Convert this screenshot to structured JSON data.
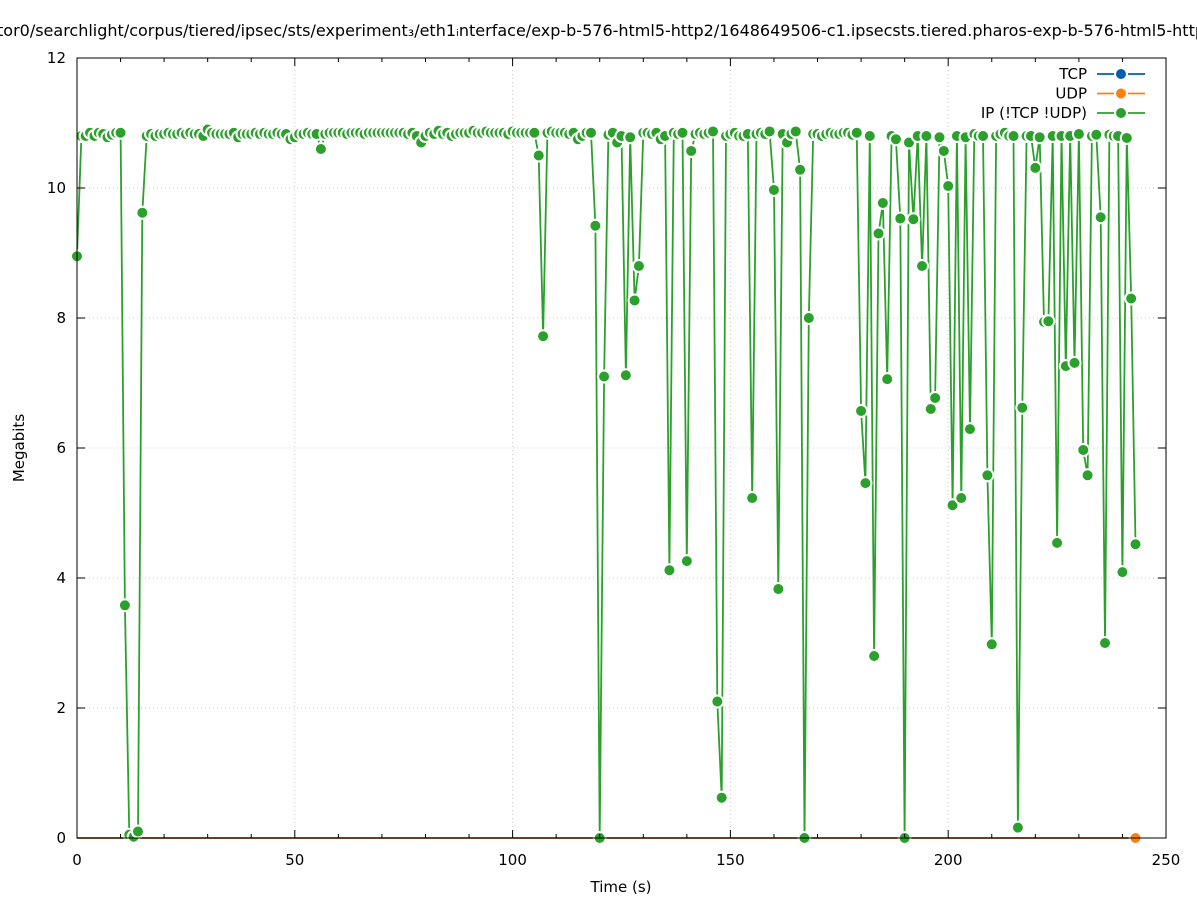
{
  "chart_data": {
    "type": "line",
    "title": "tor0/searchlight/corpus/tiered/ipsec/sts/experiment₃/eth1ᵢnterface/exp-b-576-html5-http2/1648649506-c1.ipsecsts.tiered.pharos-exp-b-576-html5-http",
    "xlabel": "Time (s)",
    "ylabel": "Megabits",
    "xlim": [
      0,
      250
    ],
    "ylim": [
      0,
      12
    ],
    "xticks": [
      "0",
      "50",
      "100",
      "150",
      "200",
      "250"
    ],
    "yticks": [
      "0",
      "2",
      "4",
      "6",
      "8",
      "10",
      "12"
    ],
    "grid": true,
    "legend_position": "top-right",
    "series": [
      {
        "name": "TCP",
        "color": "#0060ad",
        "x": [
          0,
          243
        ],
        "values": [
          0,
          0
        ],
        "markers": "none"
      },
      {
        "name": "UDP",
        "color": "#ff7f0e",
        "x": [
          0,
          243
        ],
        "values": [
          0,
          0
        ],
        "markers": "last"
      },
      {
        "name": "IP (!TCP  !UDP)",
        "color": "#2ca02c",
        "x_start": 0,
        "x_step": 1,
        "markers": "all",
        "values": [
          8.95,
          10.8,
          10.8,
          10.85,
          10.8,
          10.85,
          10.83,
          10.78,
          10.82,
          10.85,
          10.85,
          3.58,
          0.05,
          0.02,
          0.1,
          9.62,
          10.8,
          10.83,
          10.8,
          10.83,
          10.83,
          10.85,
          10.83,
          10.83,
          10.85,
          10.83,
          10.85,
          10.83,
          10.83,
          10.8,
          10.9,
          10.85,
          10.83,
          10.83,
          10.83,
          10.83,
          10.85,
          10.78,
          10.83,
          10.83,
          10.83,
          10.85,
          10.83,
          10.85,
          10.83,
          10.83,
          10.85,
          10.83,
          10.83,
          10.75,
          10.78,
          10.83,
          10.83,
          10.85,
          10.83,
          10.83,
          10.6,
          10.83,
          10.85,
          10.85,
          10.85,
          10.85,
          10.83,
          10.85,
          10.85,
          10.85,
          10.83,
          10.85,
          10.85,
          10.85,
          10.85,
          10.85,
          10.85,
          10.85,
          10.85,
          10.85,
          10.83,
          10.85,
          10.8,
          10.7,
          10.8,
          10.85,
          10.83,
          10.88,
          10.83,
          10.85,
          10.8,
          10.83,
          10.85,
          10.85,
          10.85,
          10.88,
          10.85,
          10.85,
          10.87,
          10.85,
          10.85,
          10.85,
          10.85,
          10.83,
          10.87,
          10.85,
          10.85,
          10.85,
          10.85,
          10.85,
          10.5,
          7.72,
          10.85,
          10.87,
          10.85,
          10.85,
          10.85,
          10.83,
          10.85,
          10.75,
          10.8,
          10.85,
          10.85,
          9.42,
          0,
          7.1,
          10.82,
          10.85,
          10.7,
          10.8,
          7.12,
          10.78,
          8.27,
          8.8,
          10.85,
          10.85,
          10.83,
          10.85,
          10.75,
          10.8,
          4.12,
          10.85,
          10.83,
          10.85,
          4.26,
          10.57,
          10.83,
          10.85,
          10.83,
          10.85,
          10.87,
          2.1,
          0.62,
          10.8,
          10.83,
          10.85,
          10.8,
          10.8,
          10.83,
          5.23,
          10.83,
          10.85,
          10.83,
          10.87,
          9.97,
          3.83,
          10.83,
          10.7,
          10.83,
          10.87,
          10.28,
          0,
          8.0,
          10.83,
          10.83,
          10.8,
          10.83,
          10.85,
          10.83,
          10.83,
          10.85,
          10.85,
          10.82,
          10.85,
          6.57,
          5.46,
          10.8,
          2.8,
          9.3,
          9.77,
          7.06,
          10.8,
          10.75,
          9.53,
          0,
          10.7,
          9.52,
          10.8,
          8.8,
          10.8,
          6.6,
          6.77,
          10.78,
          10.57,
          10.03,
          5.12,
          10.8,
          5.23,
          10.78,
          6.29,
          10.83,
          10.8,
          10.8,
          5.58,
          2.98,
          10.8,
          10.83,
          10.85,
          10.8,
          10.8,
          0.16,
          6.62,
          10.8,
          10.8,
          10.31,
          10.78,
          7.94,
          7.95,
          10.8,
          4.54,
          10.8,
          7.26,
          10.8,
          7.31,
          10.83,
          5.97,
          5.58,
          10.8,
          10.82,
          9.55,
          3.0,
          10.82,
          10.8,
          10.8,
          4.09,
          10.77,
          8.3,
          4.52
        ]
      }
    ]
  }
}
